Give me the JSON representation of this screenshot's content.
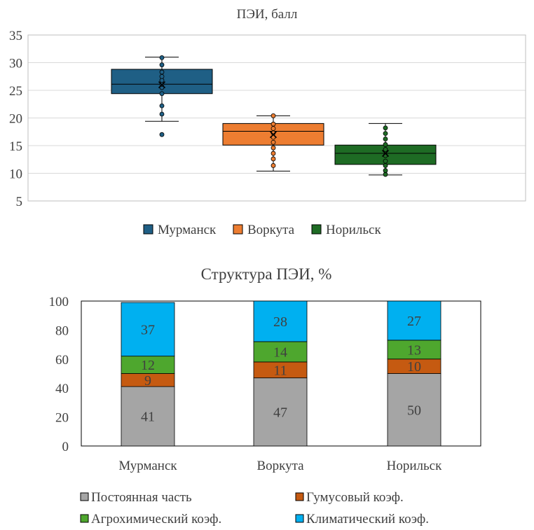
{
  "chart_data": [
    {
      "type": "box",
      "title": "ПЭИ, балл",
      "ylim": [
        5,
        35
      ],
      "yticks": [
        5,
        10,
        15,
        20,
        25,
        30,
        35
      ],
      "grid": true,
      "legend_position": "bottom",
      "series": [
        {
          "name": "Мурманск",
          "color": "#1F5F85",
          "min": 19.4,
          "q1": 24.4,
          "median": 26.1,
          "q3": 28.8,
          "max": 31.0,
          "mean": 26.0,
          "points": [
            17.0,
            20.7,
            22.2,
            24.4,
            25.5,
            26.1,
            26.8,
            27.5,
            28.3,
            29.6,
            30.9
          ]
        },
        {
          "name": "Воркута",
          "color": "#ED7D31",
          "min": 10.4,
          "q1": 15.1,
          "median": 17.6,
          "q3": 19.0,
          "max": 20.4,
          "mean": 17.0,
          "points": [
            11.4,
            12.6,
            13.6,
            14.6,
            15.6,
            16.5,
            17.3,
            18.1,
            18.9,
            20.4
          ]
        },
        {
          "name": "Норильск",
          "color": "#1E6B24",
          "min": 9.7,
          "q1": 11.6,
          "median": 13.6,
          "q3": 15.1,
          "max": 19.0,
          "mean": 13.6,
          "points": [
            9.8,
            10.5,
            11.4,
            12.2,
            13.2,
            14.3,
            15.2,
            16.2,
            17.2,
            18.2
          ]
        }
      ]
    },
    {
      "type": "bar",
      "stacked": true,
      "title": "Структура ПЭИ, %",
      "categories": [
        "Мурманск",
        "Воркута",
        "Норильск"
      ],
      "ylim": [
        0,
        100
      ],
      "yticks": [
        0,
        20,
        40,
        60,
        80,
        100
      ],
      "legend_position": "bottom",
      "series": [
        {
          "name": "Постоянная часть",
          "color": "#A5A5A5",
          "label_color": "#404040",
          "values": [
            41,
            47,
            50
          ]
        },
        {
          "name": "Гумусовый коэф.",
          "color": "#C55A11",
          "label_color": "#404040",
          "values": [
            9,
            11,
            10
          ]
        },
        {
          "name": "Агрохимический коэф.",
          "color": "#4EA72E",
          "label_color": "#404040",
          "values": [
            12,
            14,
            13
          ]
        },
        {
          "name": "Климатический коэф.",
          "color": "#00B0F0",
          "label_color": "#404040",
          "values": [
            37,
            28,
            27
          ]
        }
      ]
    }
  ]
}
